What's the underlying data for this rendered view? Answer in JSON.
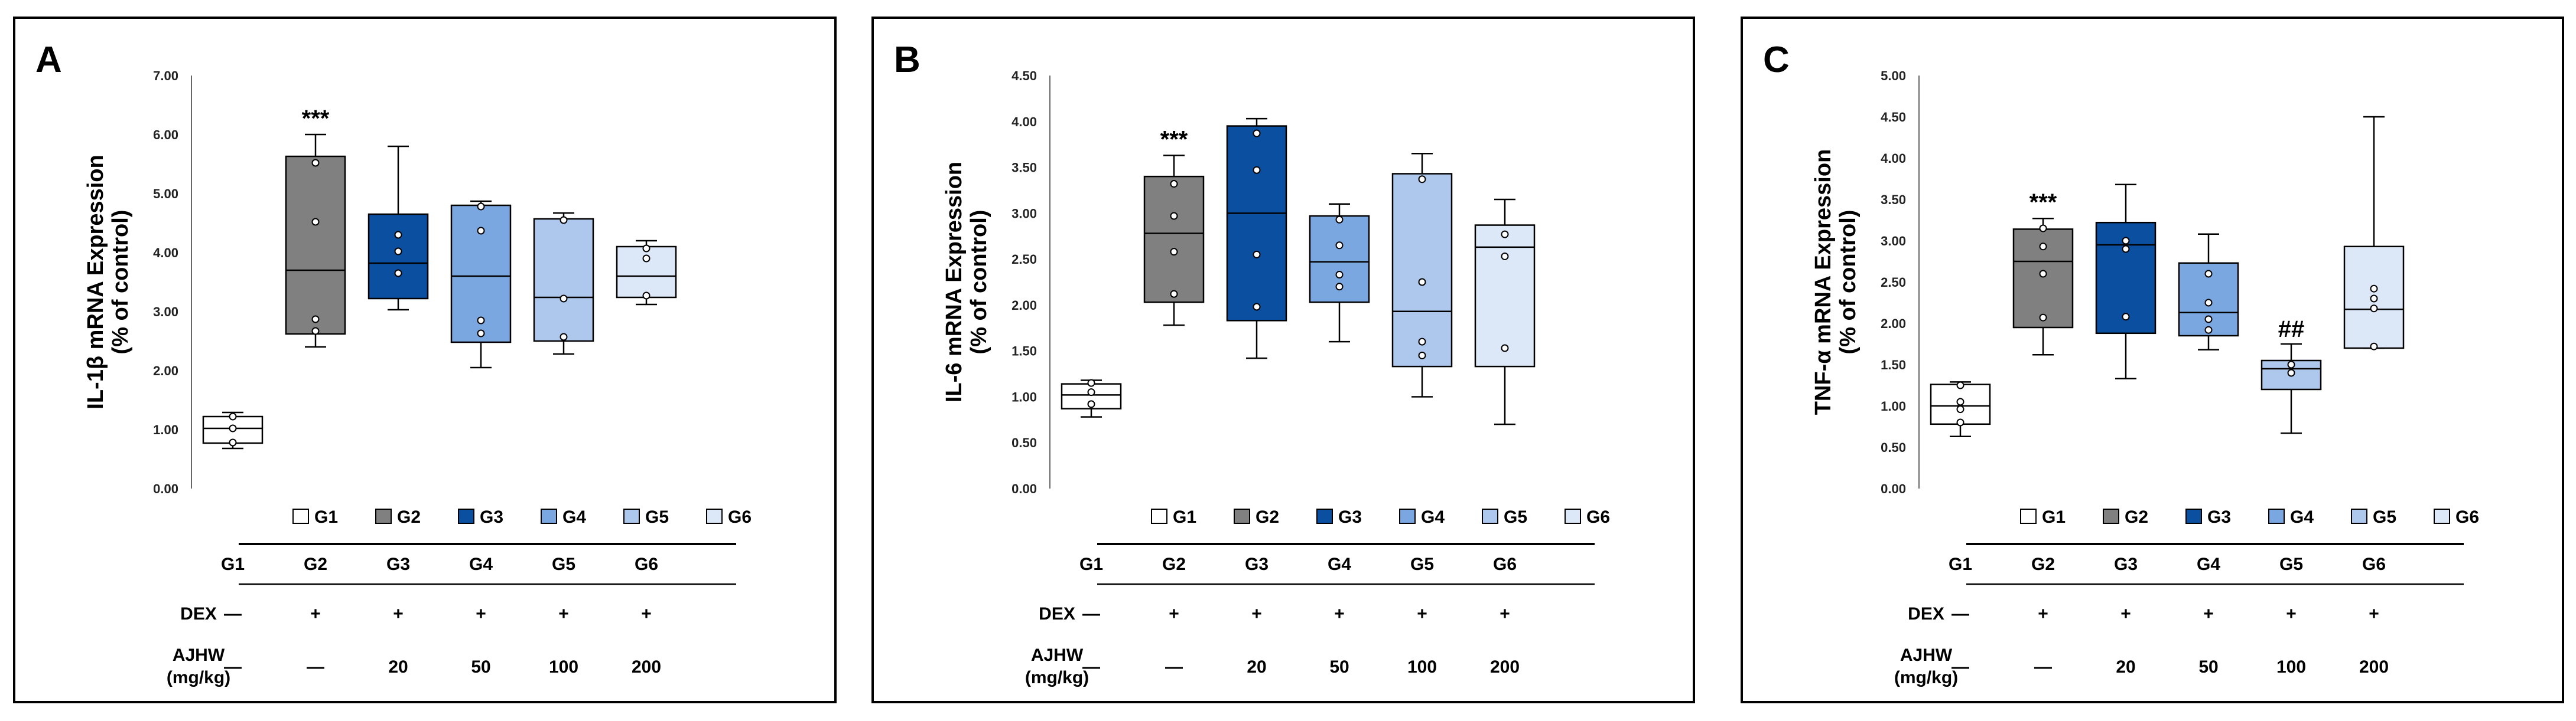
{
  "colors": {
    "G1": "#ffffff",
    "G2": "#808080",
    "G3": "#0a4fa0",
    "G4": "#7ba7e0",
    "G5": "#adc8ec",
    "G6": "#dce8f7"
  },
  "table": {
    "groups": [
      "G1",
      "G2",
      "G3",
      "G4",
      "G5",
      "G6"
    ],
    "dex_label": "DEX",
    "dex": [
      "—",
      "+",
      "+",
      "+",
      "+",
      "+"
    ],
    "ajhw_label_line1": "AJHW",
    "ajhw_label_line2": "(mg/kg)",
    "ajhw": [
      "—",
      "—",
      "20",
      "50",
      "100",
      "200"
    ]
  },
  "chart_data": [
    {
      "type": "box",
      "panel": "A",
      "ylabel_line1": "IL-1β mRNA Expression",
      "ylabel_line2": "(% of control)",
      "ylim": [
        0,
        7
      ],
      "yticks": [
        "0.00",
        "1.00",
        "2.00",
        "3.00",
        "4.00",
        "5.00",
        "6.00",
        "7.00"
      ],
      "categories": [
        "G1",
        "G2",
        "G3",
        "G4",
        "G5",
        "G6"
      ],
      "boxes": [
        {
          "group": "G1",
          "min": 0.68,
          "q1": 0.77,
          "median": 1.02,
          "q3": 1.22,
          "max": 1.29,
          "points": [
            1.22,
            1.02,
            0.78
          ],
          "sig": ""
        },
        {
          "group": "G2",
          "min": 2.4,
          "q1": 2.62,
          "median": 3.7,
          "q3": 5.63,
          "max": 6.0,
          "points": [
            5.52,
            4.52,
            2.87,
            2.67
          ],
          "sig": "***"
        },
        {
          "group": "G3",
          "min": 3.03,
          "q1": 3.22,
          "median": 3.82,
          "q3": 4.65,
          "max": 5.8,
          "points": [
            4.3,
            4.02,
            3.65
          ],
          "sig": ""
        },
        {
          "group": "G4",
          "min": 2.05,
          "q1": 2.48,
          "median": 3.6,
          "q3": 4.8,
          "max": 4.87,
          "points": [
            4.78,
            4.37,
            2.85,
            2.63
          ],
          "sig": ""
        },
        {
          "group": "G5",
          "min": 2.28,
          "q1": 2.5,
          "median": 3.24,
          "q3": 4.57,
          "max": 4.67,
          "points": [
            4.55,
            3.22,
            2.57
          ],
          "sig": ""
        },
        {
          "group": "G6",
          "min": 3.12,
          "q1": 3.24,
          "median": 3.6,
          "q3": 4.1,
          "max": 4.2,
          "points": [
            4.07,
            3.9,
            3.27
          ],
          "sig": ""
        }
      ]
    },
    {
      "type": "box",
      "panel": "B",
      "ylabel_line1": "IL-6 mRNA Expression",
      "ylabel_line2": "(% of control)",
      "ylim": [
        0,
        4.5
      ],
      "yticks": [
        "0.00",
        "0.50",
        "1.00",
        "1.50",
        "2.00",
        "2.50",
        "3.00",
        "3.50",
        "4.00",
        "4.50"
      ],
      "categories": [
        "G1",
        "G2",
        "G3",
        "G4",
        "G5",
        "G6"
      ],
      "boxes": [
        {
          "group": "G1",
          "min": 0.78,
          "q1": 0.87,
          "median": 1.02,
          "q3": 1.14,
          "max": 1.18,
          "points": [
            1.15,
            1.05,
            0.92
          ],
          "sig": ""
        },
        {
          "group": "G2",
          "min": 1.78,
          "q1": 2.03,
          "median": 2.78,
          "q3": 3.4,
          "max": 3.63,
          "points": [
            3.32,
            2.97,
            2.58,
            2.12
          ],
          "sig": "***"
        },
        {
          "group": "G3",
          "min": 1.42,
          "q1": 1.83,
          "median": 3.0,
          "q3": 3.95,
          "max": 4.03,
          "points": [
            3.87,
            3.47,
            2.55,
            1.98
          ],
          "sig": ""
        },
        {
          "group": "G4",
          "min": 1.6,
          "q1": 2.03,
          "median": 2.47,
          "q3": 2.97,
          "max": 3.1,
          "points": [
            2.93,
            2.65,
            2.33,
            2.2
          ],
          "sig": ""
        },
        {
          "group": "G5",
          "min": 1.0,
          "q1": 1.33,
          "median": 1.93,
          "q3": 3.43,
          "max": 3.65,
          "points": [
            3.37,
            2.25,
            1.6,
            1.45
          ],
          "sig": ""
        },
        {
          "group": "G6",
          "min": 0.7,
          "q1": 1.33,
          "median": 2.63,
          "q3": 2.87,
          "max": 3.15,
          "points": [
            2.77,
            2.53,
            1.53
          ],
          "sig": ""
        }
      ]
    },
    {
      "type": "box",
      "panel": "C",
      "ylabel_line1": "TNF-α mRNA Expression",
      "ylabel_line2": "(% of control)",
      "ylim": [
        0,
        5
      ],
      "yticks": [
        "0.00",
        "0.50",
        "1.00",
        "1.50",
        "2.00",
        "2.50",
        "3.00",
        "3.50",
        "4.00",
        "4.50",
        "5.00"
      ],
      "categories": [
        "G1",
        "G2",
        "G3",
        "G4",
        "G5",
        "G6"
      ],
      "boxes": [
        {
          "group": "G1",
          "min": 0.63,
          "q1": 0.78,
          "median": 1.0,
          "q3": 1.26,
          "max": 1.29,
          "points": [
            1.25,
            1.05,
            0.96,
            0.8
          ],
          "sig": ""
        },
        {
          "group": "G2",
          "min": 1.62,
          "q1": 1.95,
          "median": 2.75,
          "q3": 3.14,
          "max": 3.27,
          "points": [
            3.15,
            2.93,
            2.6,
            2.07
          ],
          "sig": "***"
        },
        {
          "group": "G3",
          "min": 1.33,
          "q1": 1.88,
          "median": 2.95,
          "q3": 3.22,
          "max": 3.68,
          "points": [
            3.0,
            2.9,
            2.08
          ],
          "sig": ""
        },
        {
          "group": "G4",
          "min": 1.68,
          "q1": 1.85,
          "median": 2.13,
          "q3": 2.73,
          "max": 3.08,
          "points": [
            2.6,
            2.25,
            2.05,
            1.92
          ],
          "sig": ""
        },
        {
          "group": "G5",
          "min": 0.67,
          "q1": 1.2,
          "median": 1.45,
          "q3": 1.55,
          "max": 1.75,
          "points": [
            1.5,
            1.4
          ],
          "sig": "##"
        },
        {
          "group": "G6",
          "min": 1.7,
          "q1": 1.7,
          "median": 2.17,
          "q3": 2.93,
          "max": 4.5,
          "points": [
            2.42,
            2.3,
            2.18,
            1.72
          ],
          "sig": ""
        }
      ]
    }
  ]
}
